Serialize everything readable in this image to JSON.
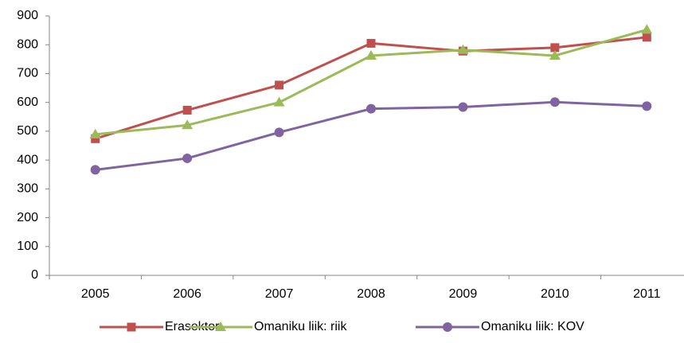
{
  "chart_data": {
    "type": "line",
    "categories": [
      "2005",
      "2006",
      "2007",
      "2008",
      "2009",
      "2010",
      "2011"
    ],
    "series": [
      {
        "name": "Erasektor",
        "color": "#c0504d",
        "marker": "square",
        "values": [
          474,
          573,
          660,
          805,
          778,
          790,
          826
        ]
      },
      {
        "name": "Omaniku liik: riik",
        "color": "#9bbb59",
        "marker": "triangle",
        "values": [
          489,
          521,
          600,
          762,
          782,
          762,
          852
        ]
      },
      {
        "name": "Omaniku liik: KOV",
        "color": "#8064a2",
        "marker": "circle",
        "values": [
          366,
          406,
          496,
          578,
          584,
          601,
          587
        ]
      }
    ],
    "ylim": [
      0,
      900
    ],
    "yticks": [
      0,
      100,
      200,
      300,
      400,
      500,
      600,
      700,
      800,
      900
    ],
    "grid": false,
    "legend": "bottom"
  }
}
